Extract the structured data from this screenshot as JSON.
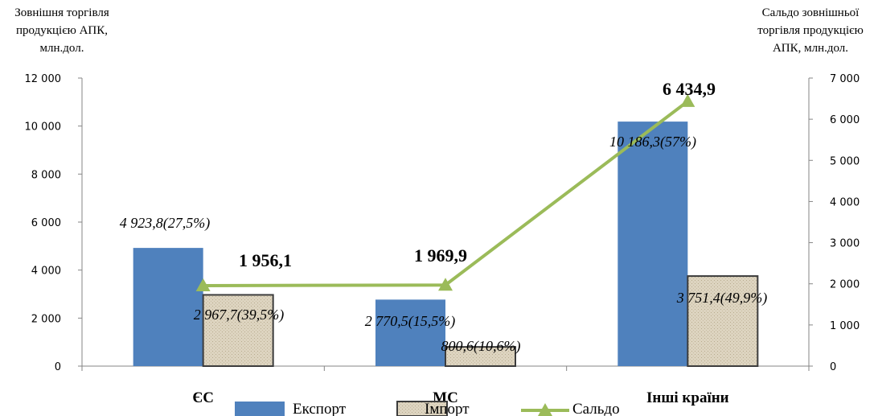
{
  "chart_data": {
    "type": "bar",
    "categories": [
      "ЄС",
      "МС",
      "Інші країни"
    ],
    "series": [
      {
        "name": "Експорт",
        "kind": "bar",
        "axis": "left",
        "values": [
          4923.8,
          2770.5,
          10186.3
        ],
        "labels": [
          "4 923,8(27,5%)",
          "2 770,5(15,5%)",
          "10 186,3(57%)"
        ]
      },
      {
        "name": "Імпорт",
        "kind": "bar",
        "axis": "left",
        "values": [
          2967.7,
          800.6,
          3751.4
        ],
        "labels": [
          "2 967,7(39,5%)",
          "800,6(10,6%)",
          "3 751,4(49,9%)"
        ]
      },
      {
        "name": "Сальдо",
        "kind": "line",
        "axis": "right",
        "values": [
          1956.1,
          1969.9,
          6434.9
        ],
        "labels": [
          "1 956,1",
          "1 969,9",
          "6 434,9"
        ]
      }
    ],
    "ylabel": "Зовнішня торгівля продукцією АПК, млн.дол.",
    "ylabel_lines": [
      "Зовнішня торгівля",
      "продукцією АПК,",
      "млн.дол."
    ],
    "y2label": "Сальдо зовнішньої торгівля продукцією АПК, млн.дол.",
    "y2label_lines": [
      "Сальдо зовнішньої",
      "торгівля продукцією",
      "АПК, млн.дол."
    ],
    "ylim": [
      0,
      12000
    ],
    "y2lim": [
      0,
      7000
    ],
    "yticks": [
      "0",
      "2 000",
      "4 000",
      "6 000",
      "8 000",
      "10 000",
      "12 000"
    ],
    "y2ticks": [
      "0",
      "1 000",
      "2 000",
      "3 000",
      "4 000",
      "5 000",
      "6 000",
      "7 000"
    ],
    "legend": "bottom",
    "grid": false,
    "colors": {
      "export": "#4f81bd",
      "import": "#ddd4c0",
      "import_border": "#3c3c3c",
      "saldo": "#9bbb59"
    }
  }
}
